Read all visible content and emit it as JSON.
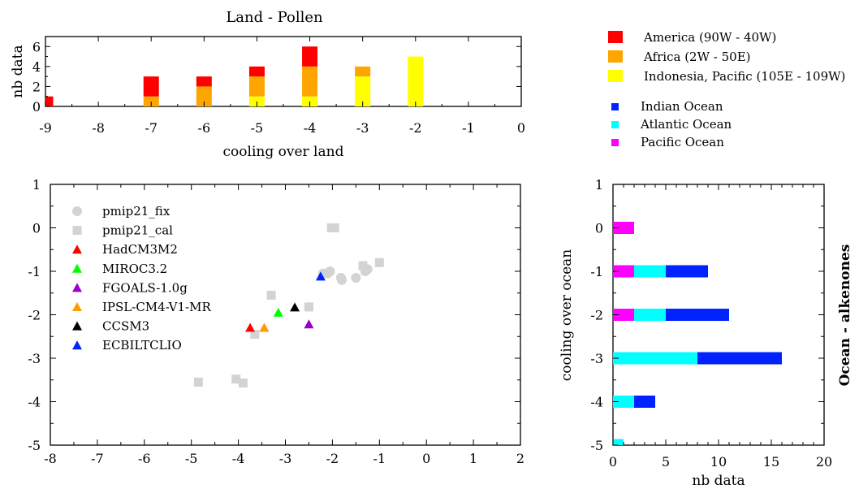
{
  "chart_data": [
    {
      "type": "bar",
      "stacked": true,
      "title": "Land - Pollen",
      "xlabel": "cooling over land",
      "ylabel": "nb data",
      "xlim": [
        -9,
        0
      ],
      "ylim": [
        0,
        7
      ],
      "xticks": [
        -9,
        -8,
        -7,
        -6,
        -5,
        -4,
        -3,
        -2,
        -1,
        0
      ],
      "yticks": [
        0,
        2,
        4,
        6
      ],
      "categories": [
        -9,
        -7,
        -6,
        -5,
        -4,
        -3,
        -2
      ],
      "series": [
        {
          "name": "Indonesia, Pacific (105E - 109W)",
          "color": "#ffff00",
          "values": [
            0,
            0,
            0,
            1,
            1,
            3,
            5
          ]
        },
        {
          "name": "Africa (2W - 50E)",
          "color": "#ffa500",
          "values": [
            0,
            1,
            2,
            2,
            3,
            1,
            0
          ]
        },
        {
          "name": "America (90W - 40W)",
          "color": "#ff0000",
          "values": [
            1,
            2,
            1,
            1,
            2,
            0,
            0
          ]
        }
      ],
      "legend": {
        "position": "top-right"
      }
    },
    {
      "type": "scatter",
      "xlim": [
        -8,
        2
      ],
      "ylim": [
        -5,
        1
      ],
      "xticks": [
        -8,
        -7,
        -6,
        -5,
        -4,
        -3,
        -2,
        -1,
        0,
        1,
        2
      ],
      "yticks": [
        1,
        0,
        -1,
        -2,
        -3,
        -4,
        -5
      ],
      "legend": {
        "position": "top-left"
      },
      "series": [
        {
          "name": "pmip21_fix",
          "marker": "circle",
          "color": "#d3d3d3",
          "points": [
            [
              -2.05,
              -1.0
            ],
            [
              -2.1,
              -1.05
            ],
            [
              -1.8,
              -1.2
            ],
            [
              -1.82,
              -1.15
            ],
            [
              -1.5,
              -1.15
            ],
            [
              -1.25,
              -0.95
            ],
            [
              -1.3,
              -1.0
            ],
            [
              -2.2,
              -1.05
            ]
          ]
        },
        {
          "name": "pmip21_cal",
          "marker": "square",
          "color": "#d3d3d3",
          "points": [
            [
              -1.95,
              0.0
            ],
            [
              -2.02,
              0.0
            ],
            [
              -1.0,
              -0.8
            ],
            [
              -1.35,
              -0.87
            ],
            [
              -3.3,
              -1.55
            ],
            [
              -2.5,
              -1.82
            ],
            [
              -3.65,
              -2.45
            ],
            [
              -4.85,
              -3.55
            ],
            [
              -4.05,
              -3.48
            ],
            [
              -3.9,
              -3.57
            ]
          ]
        },
        {
          "name": "HadCM3M2",
          "marker": "triangle",
          "color": "#ff0000",
          "points": [
            [
              -3.75,
              -2.3
            ]
          ]
        },
        {
          "name": "MIROC3.2",
          "marker": "triangle",
          "color": "#00ff00",
          "points": [
            [
              -3.15,
              -1.95
            ]
          ]
        },
        {
          "name": "FGOALS-1.0g",
          "marker": "triangle",
          "color": "#9900cc",
          "points": [
            [
              -2.5,
              -2.22
            ]
          ]
        },
        {
          "name": "IPSL-CM4-V1-MR",
          "marker": "triangle",
          "color": "#ff9900",
          "points": [
            [
              -3.45,
              -2.3
            ]
          ]
        },
        {
          "name": "CCSM3",
          "marker": "triangle",
          "color": "#000000",
          "points": [
            [
              -2.8,
              -1.83
            ]
          ]
        },
        {
          "name": "ECBILTCLIO",
          "marker": "triangle",
          "color": "#0022ff",
          "points": [
            [
              -2.25,
              -1.12
            ]
          ]
        }
      ]
    },
    {
      "type": "bar",
      "orientation": "horizontal",
      "stacked": true,
      "title": "Ocean - alkenones",
      "xlabel": "nb data",
      "ylabel": "cooling over ocean",
      "xlim": [
        0,
        20
      ],
      "ylim": [
        -5,
        1
      ],
      "xticks": [
        0,
        5,
        10,
        15,
        20
      ],
      "yticks": [
        1,
        0,
        -1,
        -2,
        -3,
        -4,
        -5
      ],
      "categories": [
        0,
        -1,
        -2,
        -3,
        -4,
        -5
      ],
      "series": [
        {
          "name": "Pacific Ocean",
          "color": "#ff00ff",
          "values": [
            2,
            2,
            2,
            0,
            0,
            0
          ]
        },
        {
          "name": "Atlantic Ocean",
          "color": "#00ffff",
          "values": [
            0,
            3,
            3,
            8,
            2,
            1
          ]
        },
        {
          "name": "Indian Ocean",
          "color": "#0022ff",
          "values": [
            0,
            4,
            6,
            8,
            2,
            0
          ]
        }
      ],
      "legend": {
        "position": "top-right"
      }
    }
  ]
}
